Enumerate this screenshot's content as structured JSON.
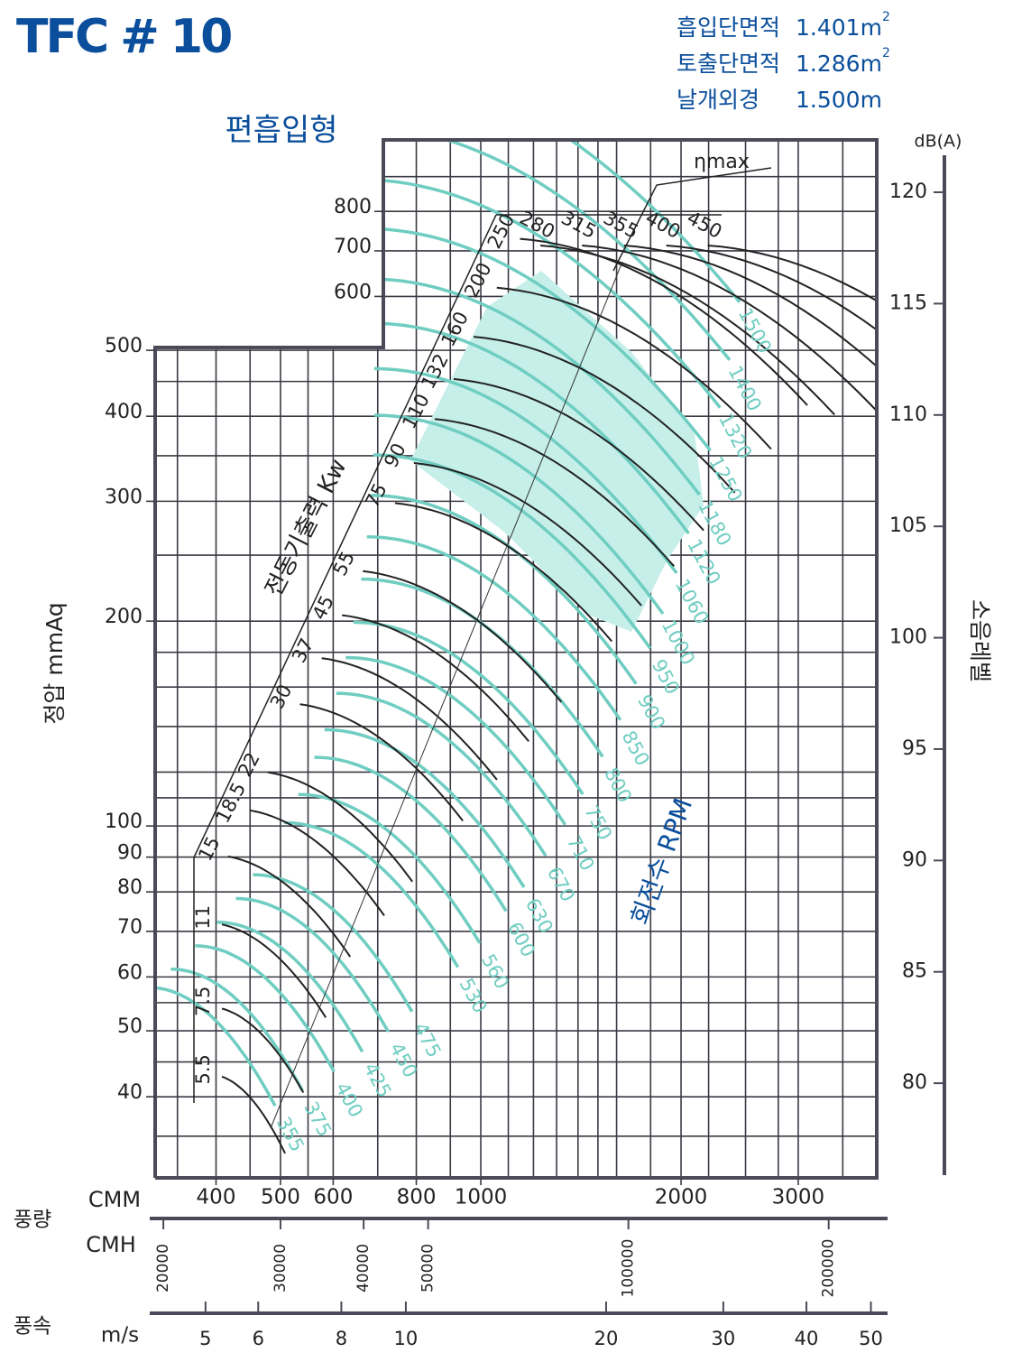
{
  "chart_data": {
    "type": "fan",
    "title": "TFC # 10",
    "subtitle": "편흡입형",
    "specs": [
      {
        "label": "흡입단면적",
        "value": "1.401m",
        "sup": "2"
      },
      {
        "label": "토출단면적",
        "value": "1.286m",
        "sup": "2"
      },
      {
        "label": "날개외경",
        "value": "1.500m"
      }
    ],
    "flow_label": "풍량",
    "xlabel": "CMM",
    "xlog": true,
    "xlim": [
      324,
      3937
    ],
    "xticks": [
      400,
      500,
      600,
      800,
      1000,
      2000,
      3000
    ],
    "xgrid": [
      350,
      400,
      450,
      500,
      550,
      600,
      700,
      800,
      900,
      1000,
      1100,
      1200,
      1300,
      1400,
      1500,
      1600,
      1800,
      2000,
      2200,
      2500,
      2800,
      3000,
      3500
    ],
    "cmh": {
      "label": "CMH",
      "xlim": [
        19440,
        236220
      ],
      "xticks": [
        20000,
        30000,
        40000,
        50000,
        100000,
        200000
      ]
    },
    "velocity": {
      "group_label": "풍속",
      "label": "m/s",
      "xlim": [
        4.2,
        51.02
      ],
      "xticks": [
        5,
        6,
        8,
        10,
        20,
        30,
        40,
        50
      ]
    },
    "ylabel": "정압 mmAq",
    "ylog": true,
    "ylim": [
      30.4,
      1019
    ],
    "yticks": [
      40,
      50,
      60,
      70,
      80,
      90,
      100,
      200,
      300,
      400,
      500,
      600,
      700,
      800
    ],
    "ygrid": [
      35,
      40,
      45,
      50,
      55,
      60,
      70,
      80,
      90,
      100,
      110,
      120,
      140,
      160,
      180,
      200,
      250,
      300,
      350,
      400,
      450,
      500,
      600,
      700,
      800,
      900
    ],
    "y2label": "소음레벨",
    "y2unit": "dB(A)",
    "y2lim": [
      75.75,
      122.35
    ],
    "y2ticks": [
      80,
      85,
      90,
      95,
      100,
      105,
      110,
      115,
      120
    ],
    "rpm": {
      "label": "회전수 RPM",
      "color": "#6fcdc1",
      "values": [
        355,
        375,
        400,
        425,
        450,
        475,
        530,
        560,
        600,
        630,
        670,
        710,
        750,
        800,
        850,
        900,
        950,
        1000,
        1060,
        1120,
        1180,
        1250,
        1320,
        1400,
        1500
      ]
    },
    "kw": {
      "label": "전동기출력 Kw",
      "color": "#222222",
      "values": [
        5.5,
        7.5,
        11,
        15,
        18.5,
        22,
        30,
        37,
        45,
        55,
        75,
        90,
        110,
        132,
        160,
        200,
        250,
        280,
        315,
        355,
        400,
        450
      ]
    },
    "eta_label": "ηmax",
    "grid": true
  }
}
